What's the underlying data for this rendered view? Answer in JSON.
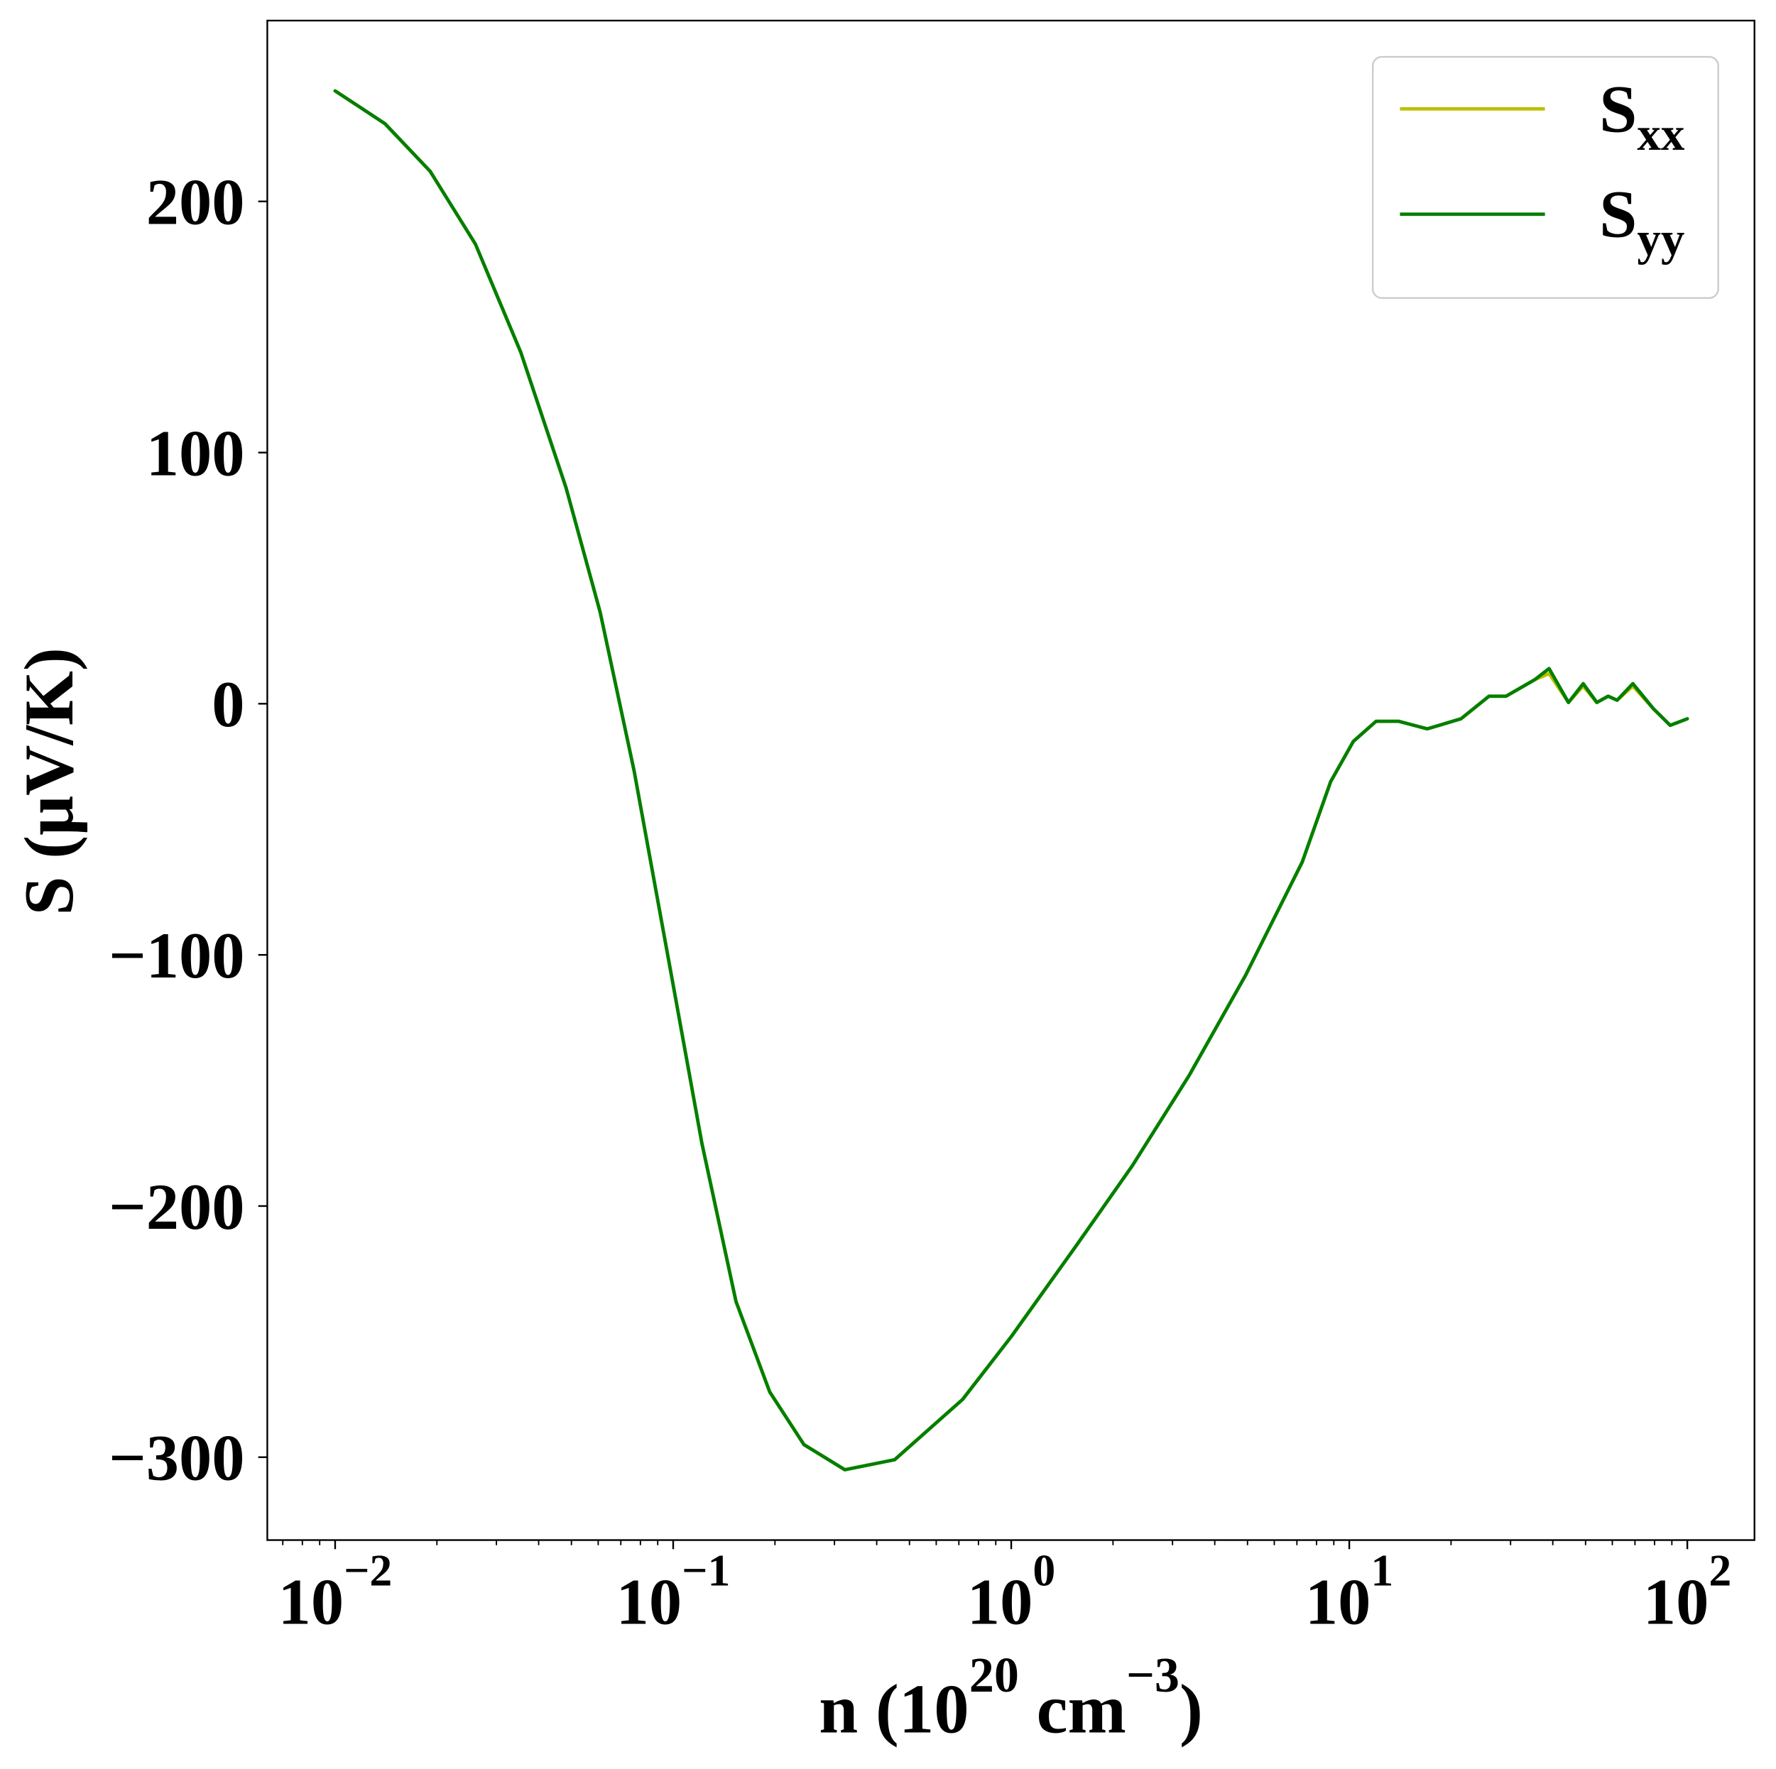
{
  "chart_data": {
    "type": "line",
    "xlabel": [
      {
        "text": "n (10"
      },
      {
        "text": "20",
        "sup": true
      },
      {
        "text": " cm"
      },
      {
        "text": "−3",
        "sup": true
      },
      {
        "text": ")"
      }
    ],
    "ylabel": "S (μV/K)",
    "x": [
      0.01,
      0.01403,
      0.0191,
      0.026,
      0.0354,
      0.0482,
      0.0608,
      0.0766,
      0.1,
      0.1216,
      0.1534,
      0.193,
      0.2437,
      0.322,
      0.452,
      0.718,
      1,
      1.553,
      2.28,
      3.36,
      4.94,
      7.26,
      8.81,
      10.28,
      12,
      14,
      17,
      21.4,
      25.9,
      29.1,
      35.3,
      39,
      44.5,
      49.2,
      54,
      58.3,
      62,
      69,
      79.4,
      89,
      100
    ],
    "series": [
      {
        "name": "S",
        "subscript": "xx",
        "color": "#bfbf00",
        "values": [
          244,
          231,
          212,
          183,
          140,
          86,
          36.5,
          -26.6,
          -112,
          -175,
          -238,
          -274,
          -295,
          -305,
          -301,
          -277,
          -252,
          -216,
          -184,
          -148,
          -108,
          -63,
          -31,
          -15,
          -7,
          -7,
          -10,
          -6,
          3,
          3,
          9.5,
          12,
          0.5,
          7,
          0.5,
          3,
          1.4,
          7,
          -2,
          -8.6,
          -6
        ]
      },
      {
        "name": "S",
        "subscript": "yy",
        "color": "#007f00",
        "values": [
          244,
          231,
          212,
          183,
          140,
          86,
          36.5,
          -26.6,
          -112,
          -175,
          -238,
          -274,
          -295,
          -305,
          -301,
          -277,
          -252,
          -216,
          -184,
          -148,
          -108,
          -63,
          -31,
          -15,
          -7,
          -7,
          -10,
          -6,
          3,
          3,
          9.5,
          14,
          0.5,
          8,
          0.5,
          3,
          1.4,
          8,
          -2,
          -8.6,
          -6
        ]
      }
    ],
    "xscale": "log",
    "xminor": true,
    "xlim": [
      0.0063,
      158
    ],
    "ylim": [
      -333,
      272
    ],
    "xticks": [
      {
        "value": 0.01,
        "label": {
          "base": "10",
          "exponent": "−2"
        }
      },
      {
        "value": 0.1,
        "label": {
          "base": "10",
          "exponent": "−1"
        }
      },
      {
        "value": 1,
        "label": {
          "base": "10",
          "exponent": "0"
        }
      },
      {
        "value": 10,
        "label": {
          "base": "10",
          "exponent": "1"
        }
      },
      {
        "value": 100,
        "label": {
          "base": "10",
          "exponent": "2"
        }
      }
    ],
    "yticks": [
      {
        "value": -300,
        "label": "−300"
      },
      {
        "value": -200,
        "label": "−200"
      },
      {
        "value": -100,
        "label": "−100"
      },
      0,
      100,
      200
    ],
    "grid": false,
    "legend": "upper right"
  }
}
